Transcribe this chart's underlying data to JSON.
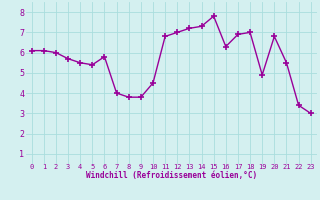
{
  "x": [
    0,
    1,
    2,
    3,
    4,
    5,
    6,
    7,
    8,
    9,
    10,
    11,
    12,
    13,
    14,
    15,
    16,
    17,
    18,
    19,
    20,
    21,
    22,
    23
  ],
  "y": [
    6.1,
    6.1,
    6.0,
    5.7,
    5.5,
    5.4,
    5.8,
    4.0,
    3.8,
    3.8,
    4.5,
    6.8,
    7.0,
    7.2,
    7.3,
    7.8,
    6.3,
    6.9,
    7.0,
    4.9,
    6.8,
    5.5,
    3.4,
    3.0
  ],
  "line_color": "#990099",
  "marker": "+",
  "bg_color": "#d4f0f0",
  "grid_color": "#aadddd",
  "xlabel": "Windchill (Refroidissement éolien,°C)",
  "xlabel_color": "#990099",
  "tick_color": "#990099",
  "xlim": [
    -0.5,
    23.5
  ],
  "ylim": [
    0.5,
    8.5
  ],
  "yticks": [
    1,
    2,
    3,
    4,
    5,
    6,
    7,
    8
  ],
  "xticks": [
    0,
    1,
    2,
    3,
    4,
    5,
    6,
    7,
    8,
    9,
    10,
    11,
    12,
    13,
    14,
    15,
    16,
    17,
    18,
    19,
    20,
    21,
    22,
    23
  ],
  "figsize": [
    3.2,
    2.0
  ],
  "dpi": 100
}
